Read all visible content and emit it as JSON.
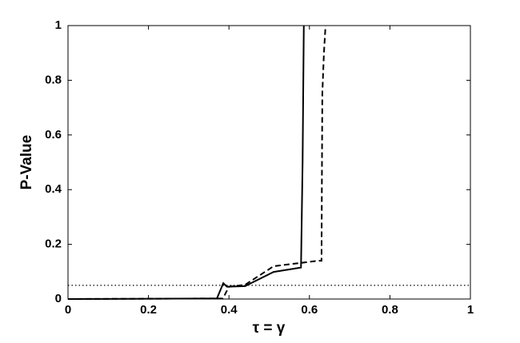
{
  "chart_data": {
    "type": "line",
    "x_label": "τ = γ",
    "y_label": "P-Value",
    "xlim": [
      0,
      1
    ],
    "xticks": [
      0,
      0.2,
      0.4,
      0.6,
      0.8,
      1
    ],
    "ylim": [
      0,
      1
    ],
    "yticks": [
      0,
      0.2,
      0.4,
      0.6,
      0.8,
      1
    ],
    "grid": false,
    "series": [
      {
        "color": "#000000",
        "line_style": "solid",
        "x": [
          0,
          0.37,
          0.386,
          0.395,
          0.44,
          0.511,
          0.579,
          0.583,
          0.586
        ],
        "values": [
          0,
          0.002,
          0.058,
          0.045,
          0.047,
          0.099,
          0.115,
          0.5,
          1
        ]
      },
      {
        "color": "#000000",
        "line_style": "dashed",
        "x": [
          0,
          0.385,
          0.4,
          0.44,
          0.511,
          0.622,
          0.63,
          0.632,
          0.636,
          0.64
        ],
        "values": [
          0,
          0.002,
          0.045,
          0.052,
          0.12,
          0.14,
          0.14,
          0.75,
          0.9,
          1
        ]
      },
      {
        "color": "#000000",
        "line_style": "dotted",
        "x": [
          0,
          1
        ],
        "values": [
          0.05,
          0.05
        ]
      }
    ]
  }
}
